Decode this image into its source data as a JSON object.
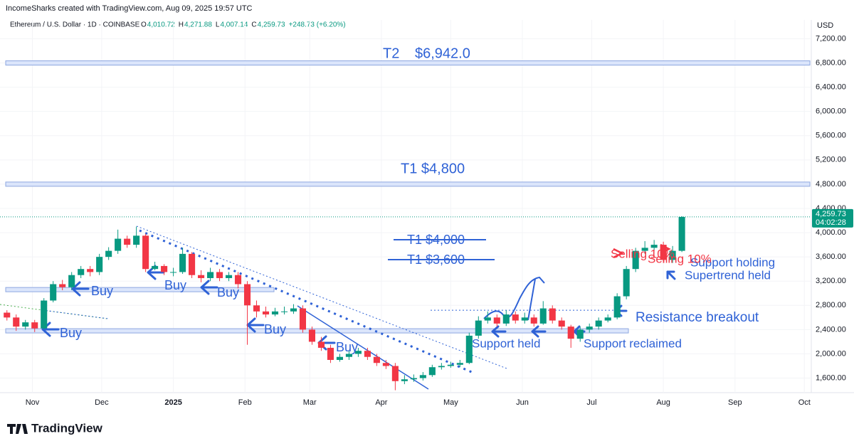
{
  "header": {
    "credit": "IncomeSharks created with TradingView.com, Aug 09, 2025 19:57 UTC",
    "symbol": "Ethereum / U.S. Dollar · 1D · COINBASE",
    "ohlc": [
      {
        "key": "O",
        "value": "4,010.72"
      },
      {
        "key": "H",
        "value": "4,271.88"
      },
      {
        "key": "L",
        "value": "4,007.14"
      },
      {
        "key": "C",
        "value": "4,259.73"
      }
    ],
    "change": "+248.73 (+6.20%)"
  },
  "chart_data": {
    "type": "candlestick",
    "currency": "USD",
    "colors": {
      "up": "#089981",
      "down": "#f23645"
    },
    "xlim": [
      17,
      368
    ],
    "ylim": [
      1360,
      7510
    ],
    "xticks": [
      {
        "value": 31,
        "label": "Nov"
      },
      {
        "value": 61,
        "label": "Dec"
      },
      {
        "value": 92,
        "label": "2025"
      },
      {
        "value": 123,
        "label": "Feb"
      },
      {
        "value": 151,
        "label": "Mar"
      },
      {
        "value": 182,
        "label": "Apr"
      },
      {
        "value": 212,
        "label": "May"
      },
      {
        "value": 243,
        "label": "Jun"
      },
      {
        "value": 273,
        "label": "Jul"
      },
      {
        "value": 304,
        "label": "Aug"
      },
      {
        "value": 335,
        "label": "Sep"
      },
      {
        "value": 365,
        "label": "Oct"
      }
    ],
    "yticks": [
      {
        "value": 1600,
        "label": "1,600.00"
      },
      {
        "value": 2000,
        "label": "2,000.00"
      },
      {
        "value": 2400,
        "label": "2,400.00"
      },
      {
        "value": 2800,
        "label": "2,800.00"
      },
      {
        "value": 3200,
        "label": "3,200.00"
      },
      {
        "value": 3600,
        "label": "3,600.00"
      },
      {
        "value": 4000,
        "label": "4,000.00"
      },
      {
        "value": 4400,
        "label": "4,400.00"
      },
      {
        "value": 4800,
        "label": "4,800.00"
      },
      {
        "value": 5200,
        "label": "5,200.00"
      },
      {
        "value": 5600,
        "label": "5,600.00"
      },
      {
        "value": 6000,
        "label": "6,000.00"
      },
      {
        "value": 6400,
        "label": "6,400.00"
      },
      {
        "value": 6800,
        "label": "6,800.00"
      },
      {
        "value": 7200,
        "label": "7,200.00"
      }
    ],
    "x": [
      20,
      24,
      28,
      32,
      36,
      40,
      44,
      48,
      52,
      56,
      60,
      64,
      68,
      72,
      76,
      80,
      84,
      88,
      92,
      96,
      100,
      104,
      108,
      112,
      116,
      120,
      124,
      128,
      132,
      136,
      140,
      144,
      148,
      152,
      156,
      160,
      164,
      168,
      172,
      176,
      180,
      184,
      188,
      192,
      196,
      200,
      204,
      208,
      212,
      216,
      220,
      224,
      228,
      232,
      236,
      240,
      244,
      248,
      252,
      256,
      260,
      264,
      268,
      272,
      276,
      280,
      284,
      288,
      292,
      296,
      300,
      304,
      308,
      312
    ],
    "open": [
      2680,
      2600,
      2450,
      2520,
      2420,
      2880,
      3150,
      3100,
      3300,
      3400,
      3350,
      3600,
      3700,
      3900,
      3800,
      3950,
      3400,
      3450,
      3350,
      3350,
      3650,
      3300,
      3250,
      3350,
      3250,
      3300,
      3150,
      2800,
      2700,
      2650,
      2700,
      2700,
      2750,
      2400,
      2200,
      2100,
      1900,
      1950,
      2000,
      2050,
      1950,
      1850,
      1800,
      1550,
      1580,
      1600,
      1650,
      1780,
      1800,
      1820,
      1850,
      2300,
      2550,
      2600,
      2500,
      2650,
      2550,
      2600,
      2500,
      2750,
      2550,
      2450,
      2250,
      2400,
      2450,
      2550,
      2600,
      2950,
      3400,
      3700,
      3750,
      3800,
      3550,
      3700
    ],
    "high": [
      2720,
      2650,
      2560,
      2560,
      2920,
      3200,
      3220,
      3350,
      3450,
      3450,
      3650,
      3760,
      4050,
      3950,
      4100,
      3980,
      3520,
      3480,
      3420,
      3750,
      3680,
      3380,
      3420,
      3400,
      3350,
      3350,
      3200,
      2880,
      2780,
      2760,
      2780,
      2820,
      2800,
      2450,
      2280,
      2150,
      2000,
      2050,
      2100,
      2100,
      2000,
      1900,
      1850,
      1650,
      1660,
      1700,
      1820,
      1850,
      1870,
      1900,
      2350,
      2620,
      2700,
      2650,
      2720,
      2700,
      2680,
      2650,
      2870,
      2800,
      2600,
      2480,
      2450,
      2500,
      2600,
      2650,
      3000,
      3450,
      3750,
      3860,
      3880,
      3850,
      3780,
      4271.88
    ],
    "low": [
      2550,
      2380,
      2400,
      2360,
      2400,
      2850,
      3050,
      3050,
      3250,
      3280,
      3300,
      3550,
      3650,
      3750,
      3750,
      3350,
      3380,
      3300,
      3280,
      3320,
      3250,
      3180,
      3200,
      3200,
      3200,
      3080,
      2150,
      2600,
      2600,
      2620,
      2650,
      2660,
      2350,
      2150,
      2050,
      1850,
      1870,
      1900,
      1950,
      1900,
      1800,
      1750,
      1400,
      1500,
      1540,
      1560,
      1620,
      1740,
      1770,
      1780,
      1830,
      2250,
      2500,
      2450,
      2460,
      2500,
      2500,
      2450,
      2480,
      2500,
      2400,
      2100,
      2200,
      2350,
      2400,
      2520,
      2570,
      2900,
      3350,
      3650,
      3700,
      3500,
      3500,
      3680
    ],
    "close": [
      2600,
      2450,
      2520,
      2420,
      2880,
      3150,
      3100,
      3300,
      3400,
      3350,
      3600,
      3700,
      3900,
      3800,
      3950,
      3400,
      3450,
      3350,
      3350,
      3650,
      3300,
      3250,
      3350,
      3250,
      3300,
      3150,
      2800,
      2700,
      2650,
      2700,
      2700,
      2750,
      2400,
      2200,
      2100,
      1900,
      1950,
      2000,
      2050,
      1950,
      1850,
      1800,
      1550,
      1580,
      1600,
      1650,
      1780,
      1800,
      1820,
      1850,
      2300,
      2550,
      2600,
      2500,
      2650,
      2550,
      2600,
      2500,
      2750,
      2550,
      2450,
      2250,
      2400,
      2450,
      2550,
      2600,
      2950,
      3400,
      3700,
      3750,
      3800,
      3550,
      3700,
      4259.73
    ],
    "last_price": {
      "value": 4259.73,
      "label": "4,259.73"
    },
    "countdown": "04:02:28",
    "levels": [
      6800,
      4800,
      3060,
      2380,
      2720
    ],
    "annotations": {
      "t2": "T2",
      "t2_price": "$6,942.0",
      "t1": "T1 $4,800",
      "t1_old_a": "T1 $4,000",
      "t1_old_b": "T1 $3,600",
      "buy": [
        "Buy",
        "Buy",
        "Buy",
        "Buy",
        "Buy",
        "Buy"
      ],
      "support_held": "Support held",
      "support_reclaimed": "Support reclaimed",
      "resistance_breakout": "Resistance breakout",
      "support_holding": "Support holding",
      "supertrend_held": "Supertrend held",
      "selling": [
        "Selling 10%",
        "Selling 10%"
      ]
    }
  },
  "footer": {
    "brand": "TradingView"
  }
}
